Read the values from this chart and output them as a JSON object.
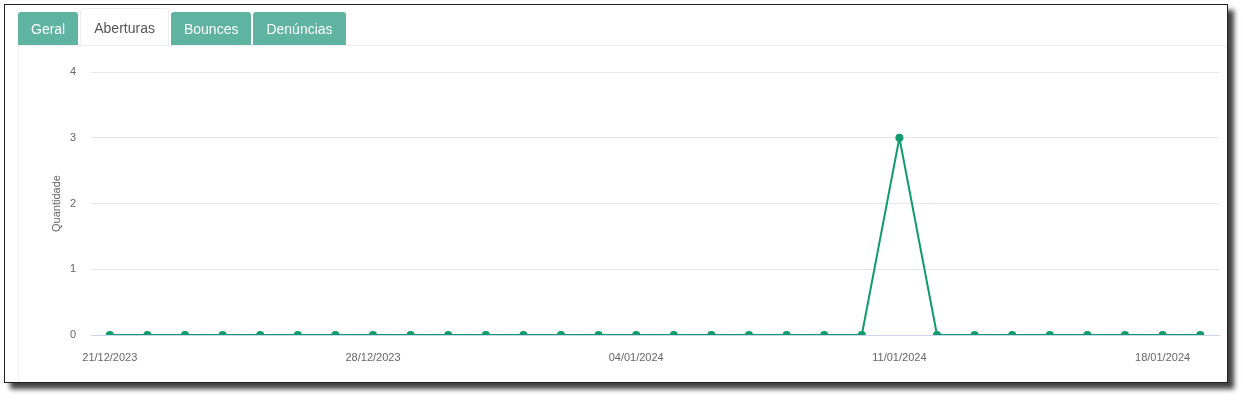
{
  "chart_data": {
    "type": "line",
    "title": "Aberturas",
    "annotations": [
      "Geral",
      "Bounces",
      "Denúncias"
    ],
    "ylabel": "Quantidade",
    "categories": [
      "21/12/2023",
      null,
      null,
      null,
      null,
      null,
      null,
      "28/12/2023",
      null,
      null,
      null,
      null,
      null,
      null,
      "04/01/2024",
      null,
      null,
      null,
      null,
      null,
      null,
      "11/01/2024",
      null,
      null,
      null,
      null,
      null,
      null,
      "18/01/2024",
      null
    ],
    "series": [
      {
        "color": "#0f9b6c",
        "values": [
          0,
          0,
          0,
          0,
          0,
          0,
          0,
          0,
          0,
          0,
          0,
          0,
          0,
          0,
          0,
          0,
          0,
          0,
          0,
          0,
          0,
          3,
          0,
          0,
          0,
          0,
          0,
          0,
          0,
          0
        ]
      }
    ],
    "ylim": [
      0,
      4
    ],
    "yticks": [
      0,
      1,
      2,
      3,
      4
    ],
    "grid": "y",
    "marker": "circle",
    "line_style": "solid"
  }
}
